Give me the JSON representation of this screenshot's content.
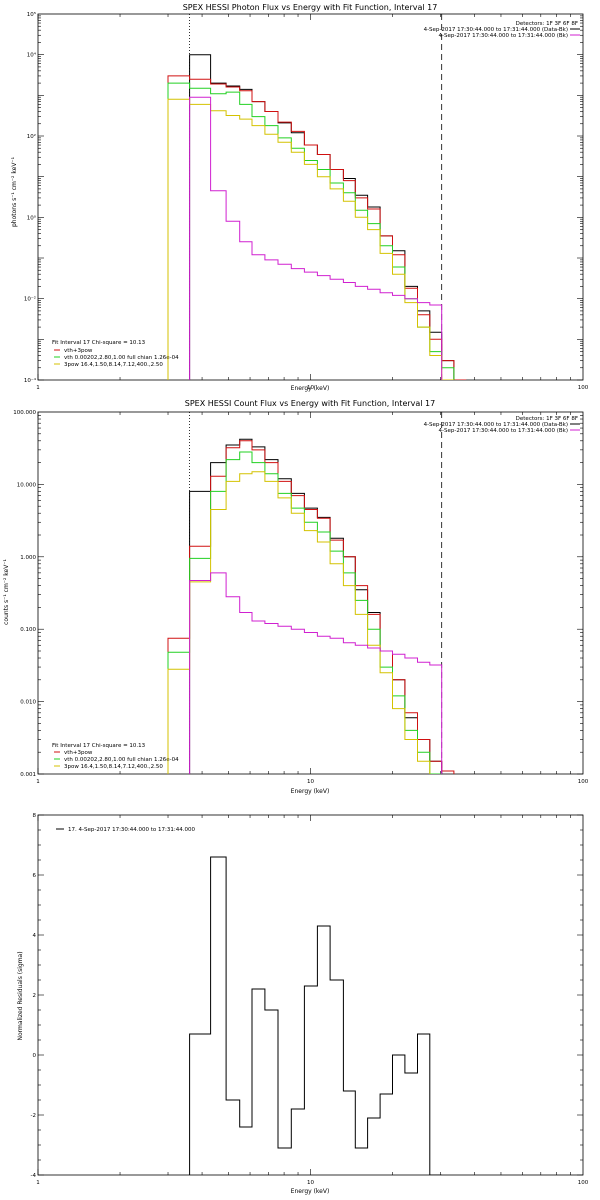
{
  "chart_data": [
    {
      "type": "line",
      "title": "SPEX HESSI Photon Flux vs Energy with Fit Function, Interval 17",
      "xlabel": "Energy (keV)",
      "ylabel": "photons s⁻¹ cm⁻² keV⁻¹",
      "xscale": "log",
      "yscale": "log",
      "xlim": [
        1,
        100
      ],
      "ylim": [
        0.0001,
        100000
      ],
      "xticks": [
        1,
        10,
        100
      ],
      "xtick_labels": [
        "1",
        "10",
        "100"
      ],
      "yticks": [
        0.0001,
        0.01,
        1,
        100,
        10000,
        100000
      ],
      "ytick_labels": [
        "10⁻⁴",
        "10⁻²",
        "10⁰",
        "10²",
        "10⁴",
        "10⁵"
      ],
      "vlines": [
        {
          "x": 3.6,
          "style": "dotted",
          "color": "#000000"
        },
        {
          "x": 30.3,
          "style": "dashed",
          "color": "#000000"
        }
      ],
      "bin_edges": [
        3.0,
        3.6,
        4.3,
        4.9,
        5.5,
        6.1,
        6.8,
        7.6,
        8.5,
        9.5,
        10.6,
        11.8,
        13.2,
        14.6,
        16.2,
        18.0,
        20.0,
        22.2,
        24.7,
        27.4,
        30.3,
        33.6,
        37.3
      ],
      "series": [
        {
          "name": "",
          "color": "#000000",
          "values": [
            null,
            10000,
            2000,
            1700,
            1400,
            700,
            400,
            210,
            120,
            60,
            35,
            15,
            9,
            3.5,
            1.8,
            0.35,
            0.15,
            0.02,
            0.005,
            0.0015,
            0.0003,
            null
          ]
        },
        {
          "name": "vth+3pow",
          "color": "#d01010",
          "values": [
            3000,
            2500,
            1900,
            1600,
            1300,
            700,
            400,
            220,
            130,
            60,
            35,
            15,
            8,
            3,
            1.6,
            0.35,
            0.12,
            0.018,
            0.004,
            0.001,
            0.0003,
            0.0001
          ]
        },
        {
          "name": "vth 0.00202,2.80,1.00 full chian 1.26e-04",
          "color": "#22d022",
          "values": [
            2000,
            1500,
            1100,
            1200,
            600,
            300,
            180,
            90,
            50,
            25,
            15,
            7,
            4,
            1.5,
            0.7,
            0.2,
            0.06,
            0.01,
            0.002,
            0.0005,
            0.0002,
            null
          ]
        },
        {
          "name": "3pow 16.4,1.50,8.14,7.12,400.,2.50",
          "color": "#d4c200",
          "values": [
            800,
            600,
            420,
            320,
            260,
            180,
            110,
            70,
            40,
            20,
            10,
            5,
            2.5,
            1,
            0.5,
            0.13,
            0.04,
            0.008,
            0.002,
            0.0004,
            0.0001,
            null
          ]
        },
        {
          "name": "",
          "color": "#d020d0",
          "values": [
            null,
            900,
            4.5,
            0.8,
            0.25,
            0.12,
            0.09,
            0.07,
            0.055,
            0.045,
            0.037,
            0.03,
            0.025,
            0.02,
            0.017,
            0.014,
            0.012,
            0.01,
            0.008,
            0.007,
            null,
            null
          ]
        }
      ],
      "info_right": [
        "Detectors: 1F 3F 6F 8F",
        "4-Sep-2017 17:30:44.000 to 17:31:44.000 (Data-Bk)",
        "4-Sep-2017 17:30:44.000 to 17:31:44.000 (Bk)"
      ],
      "info_left": [
        "Fit Interval 17    Chi-square = 10.13",
        "vth+3pow",
        "vth 0.00202,2.80,1.00  full chian 1.26e-04",
        "3pow 16.4,1.50,8.14,7.12,400.,2.50"
      ]
    },
    {
      "type": "line",
      "title": "SPEX HESSI Count Flux vs Energy with Fit Function, Interval 17",
      "xlabel": "Energy (keV)",
      "ylabel": "counts s⁻¹ cm⁻² keV⁻¹",
      "xscale": "log",
      "yscale": "log",
      "xlim": [
        1,
        100
      ],
      "ylim": [
        0.001,
        100
      ],
      "xticks": [
        1,
        10,
        100
      ],
      "xtick_labels": [
        "1",
        "10",
        "100"
      ],
      "yticks": [
        0.001,
        0.01,
        0.1,
        1,
        10,
        100
      ],
      "ytick_labels": [
        "0.001",
        "0.010",
        "0.100",
        "1.000",
        "10.000",
        "100.000"
      ],
      "vlines": [
        {
          "x": 3.6,
          "style": "dotted",
          "color": "#000000"
        },
        {
          "x": 30.3,
          "style": "dashed",
          "color": "#000000"
        }
      ],
      "bin_edges": [
        3.0,
        3.6,
        4.3,
        4.9,
        5.5,
        6.1,
        6.8,
        7.6,
        8.5,
        9.5,
        10.6,
        11.8,
        13.2,
        14.6,
        16.2,
        18.0,
        20.0,
        22.2,
        24.7,
        27.4,
        30.3,
        33.6,
        37.3
      ],
      "series": [
        {
          "name": "",
          "color": "#000000",
          "values": [
            null,
            8,
            20,
            35,
            42,
            33,
            22,
            12,
            7.5,
            4.7,
            3.5,
            1.8,
            1.0,
            0.35,
            0.17,
            0.05,
            0.02,
            0.006,
            0.003,
            0.0015,
            null,
            null
          ]
        },
        {
          "name": "vth+3pow",
          "color": "#d01010",
          "values": [
            0.075,
            1.4,
            13,
            32,
            40,
            30,
            20,
            11,
            7,
            4.5,
            3.4,
            1.7,
            1.0,
            0.4,
            0.16,
            0.05,
            0.02,
            0.007,
            0.003,
            0.0015,
            0.0011,
            null
          ]
        },
        {
          "name": "vth 0.00202,2.80,1.00 full chian 1.26e-04",
          "color": "#22d022",
          "values": [
            0.048,
            0.95,
            8,
            22,
            28,
            20,
            14,
            7.5,
            4.7,
            3.0,
            2.2,
            1.2,
            0.6,
            0.25,
            0.1,
            0.03,
            0.012,
            0.004,
            0.002,
            0.001,
            null,
            null
          ]
        },
        {
          "name": "3pow 16.4,1.50,8.14,7.12,400.,2.50",
          "color": "#d4c200",
          "values": [
            0.028,
            0.45,
            4.5,
            11,
            14,
            15,
            11,
            6.5,
            4.0,
            2.3,
            1.6,
            0.8,
            0.4,
            0.16,
            0.06,
            0.025,
            0.008,
            0.003,
            0.0015,
            null,
            null,
            null
          ]
        },
        {
          "name": "",
          "color": "#d020d0",
          "values": [
            null,
            0.47,
            0.6,
            0.28,
            0.17,
            0.13,
            0.12,
            0.11,
            0.1,
            0.09,
            0.08,
            0.075,
            0.065,
            0.06,
            0.055,
            0.05,
            0.045,
            0.04,
            0.035,
            0.032,
            null,
            null
          ]
        }
      ],
      "info_right": [
        "Detectors: 1F 3F 6F 8F",
        "4-Sep-2017 17:30:44.000 to 17:31:44.000 (Data-Bk)",
        "4-Sep-2017 17:30:44.000 to 17:31:44.000 (Bk)"
      ],
      "info_left": [
        "Fit Interval 17    Chi-square = 10.13",
        "vth+3pow",
        "vth 0.00202,2.80,1.00  full chian 1.26e-04",
        "3pow 16.4,1.50,8.14,7.12,400.,2.50"
      ]
    },
    {
      "type": "line",
      "title": "",
      "xlabel": "Energy (keV)",
      "ylabel": "Normalized Residuals (sigma)",
      "xscale": "log",
      "yscale": "linear",
      "xlim": [
        1,
        100
      ],
      "ylim": [
        -4,
        8
      ],
      "xticks": [
        1,
        10,
        100
      ],
      "xtick_labels": [
        "1",
        "10",
        "100"
      ],
      "yticks": [
        -4,
        -2,
        0,
        2,
        4,
        6,
        8
      ],
      "ytick_labels": [
        "-4",
        "-2",
        "0",
        "2",
        "4",
        "6",
        "8"
      ],
      "bin_edges": [
        3.6,
        4.3,
        4.9,
        5.5,
        6.1,
        6.8,
        7.6,
        8.5,
        9.5,
        10.6,
        11.8,
        13.2,
        14.6,
        16.2,
        18.0,
        20.0,
        22.2,
        24.7,
        27.4,
        30.3
      ],
      "series": [
        {
          "name": "17.  4-Sep-2017 17:30:44.000 to 17:31:44.000",
          "color": "#000000",
          "values": [
            0.7,
            6.6,
            -1.5,
            -2.4,
            2.2,
            1.5,
            -3.1,
            -1.8,
            2.3,
            4.3,
            2.5,
            -1.2,
            -3.1,
            -2.1,
            -1.3,
            0.0,
            -0.6,
            0.7,
            -4.0
          ]
        }
      ],
      "info_left": [
        "17.  4-Sep-2017 17:30:44.000 to 17:31:44.000"
      ]
    }
  ]
}
